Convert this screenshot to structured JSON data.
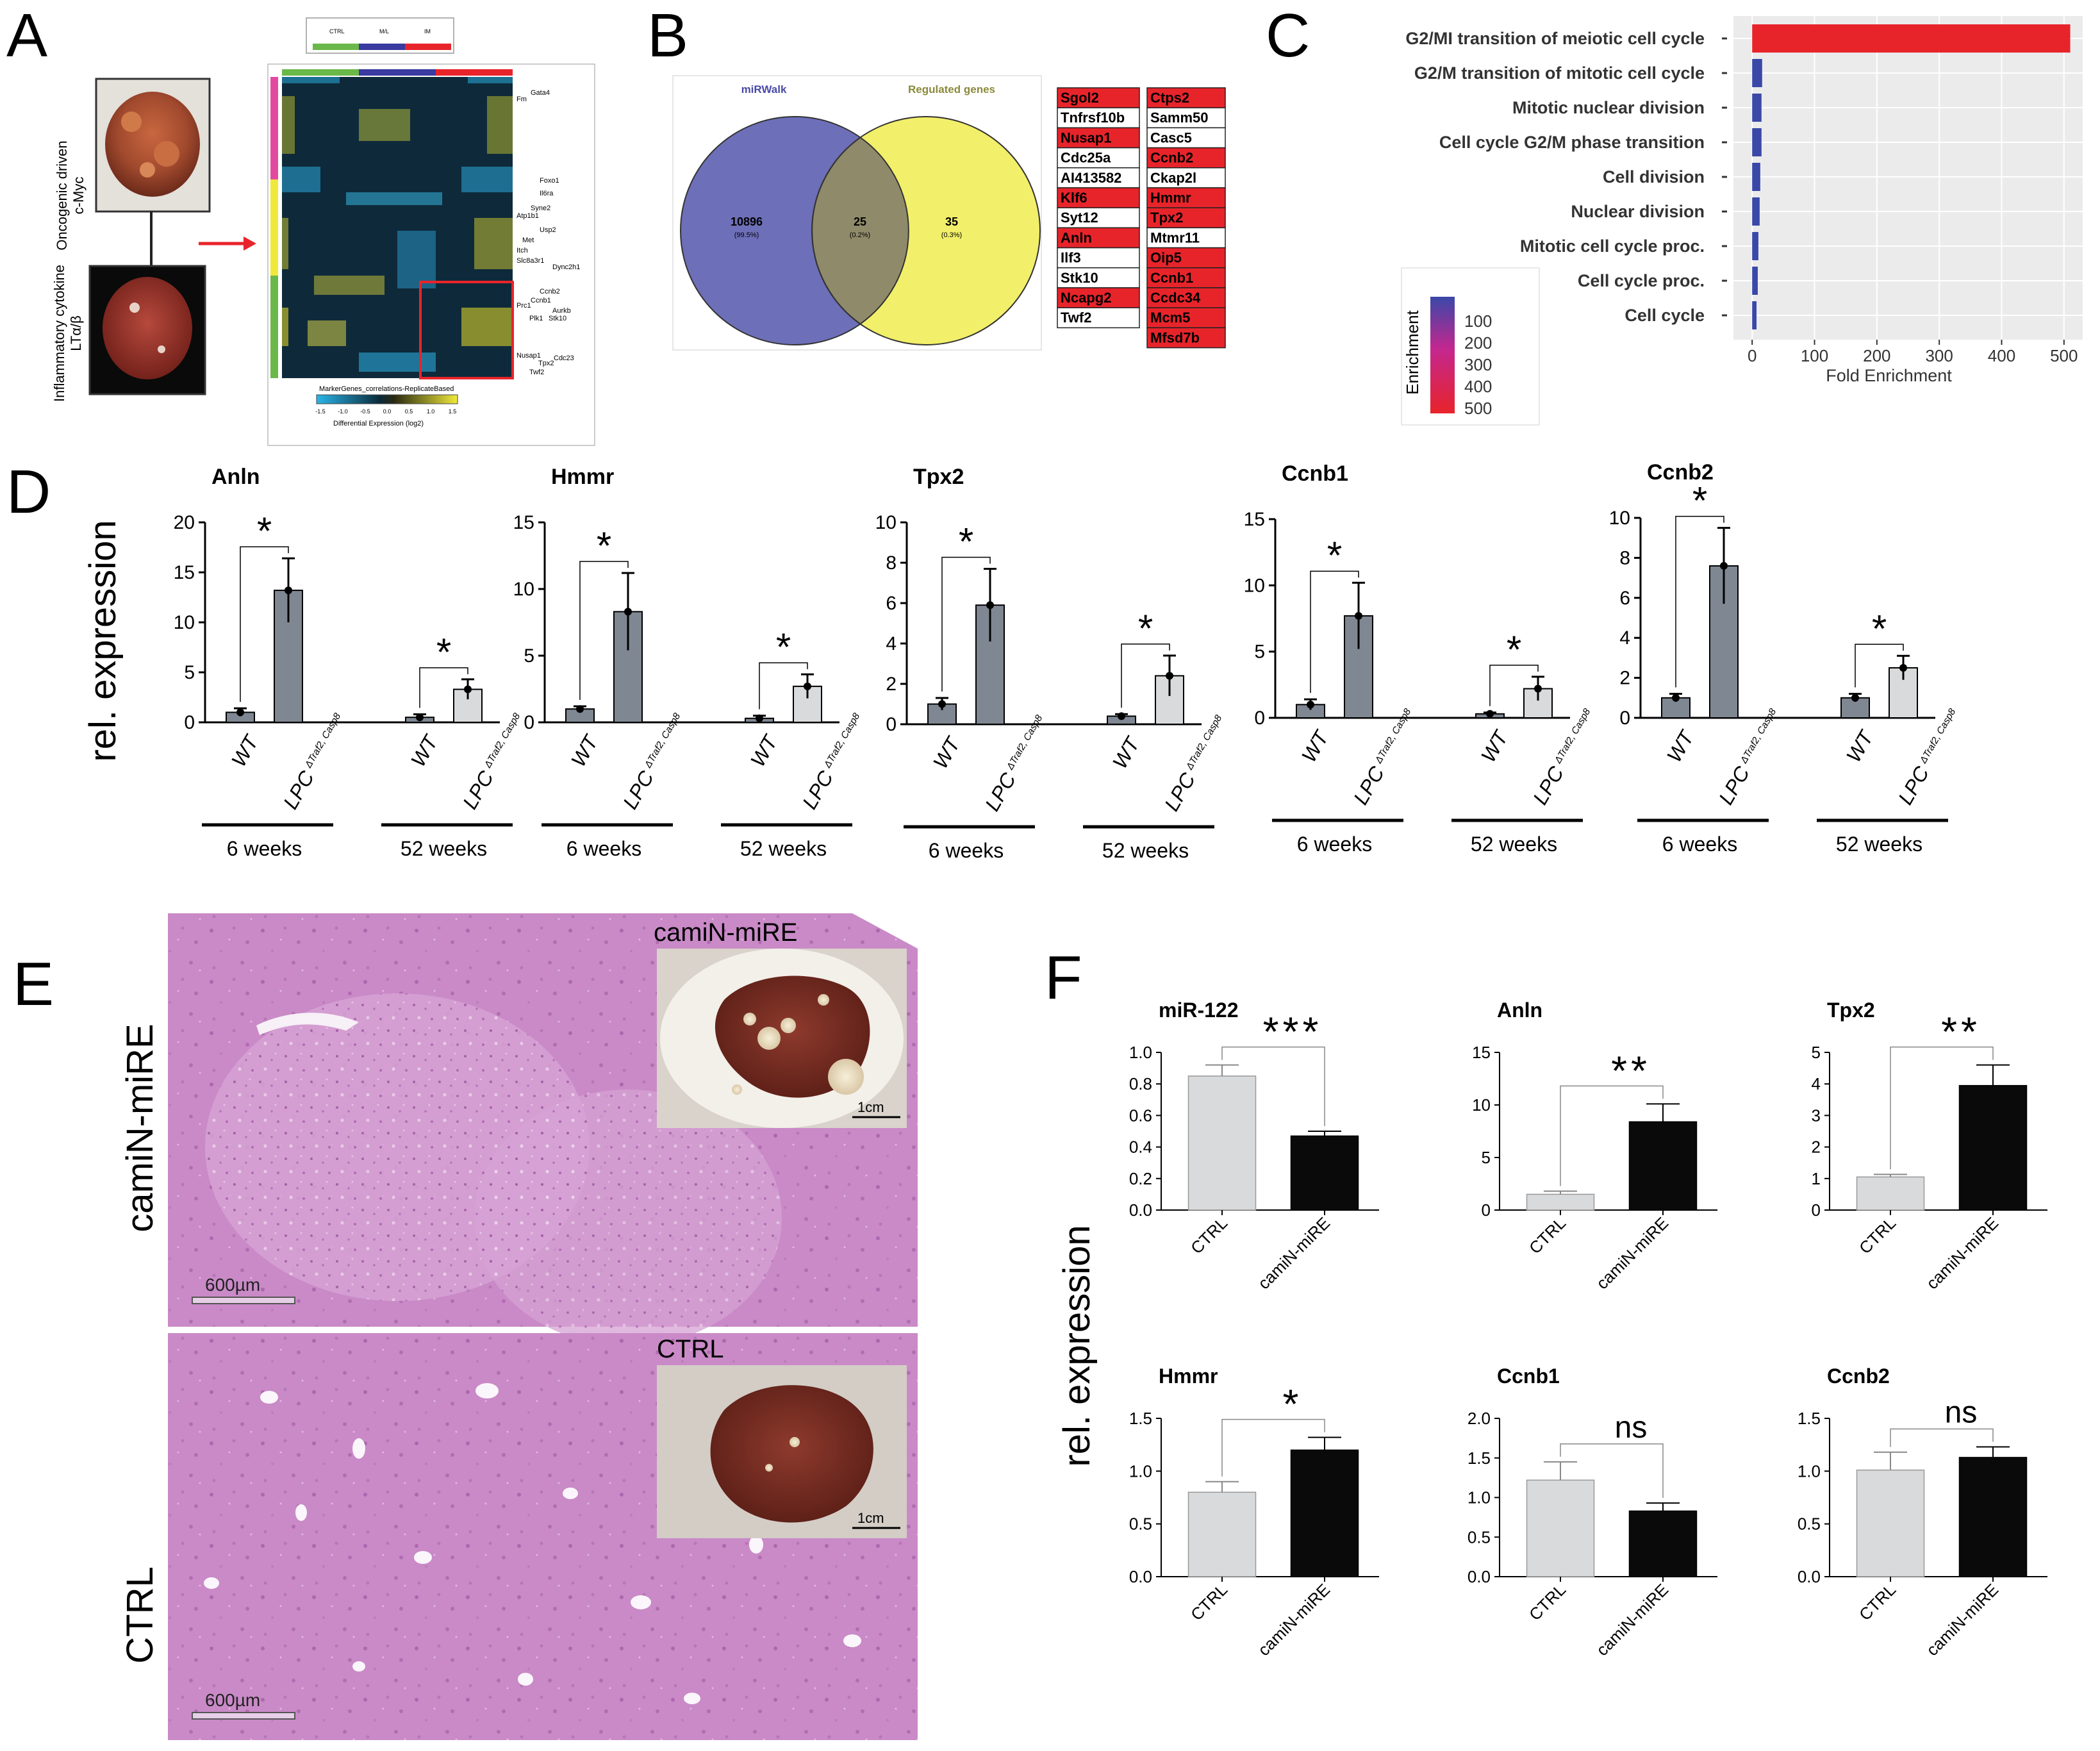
{
  "colors": {
    "venn_left": "#6d6fb8",
    "venn_right": "#f2ef6a",
    "venn_overlap": "#8f8a6a",
    "gene_highlight": "#e8242b",
    "bar_dark": "#7f8792",
    "bar_light": "#d8dadc",
    "bar_black": "#0a0a0a",
    "enrich_red": "#e8242b",
    "enrich_blue": "#3a48a8",
    "he_pink": "#c98ac7",
    "liver": "#8a2e22"
  },
  "panels": {
    "A": {
      "letter": "A",
      "photo_labels": [
        "Oncogenic driven",
        "c-Myc",
        "Inflammatory cytokine",
        "LTα/β"
      ],
      "group_labels": [
        "CTRL",
        "M/L",
        "IM"
      ],
      "heatmap_genes": [
        "Gata4",
        "Fm",
        "Foxo1",
        "Il6ra",
        "Atp1b1",
        "Syne2",
        "Usp2",
        "Met",
        "Itch",
        "Slc8a3r1",
        "Dync2h1",
        "Ccnb2",
        "Ccnb1",
        "Prc1",
        "Aurkb",
        "Plk1",
        "Nusap1",
        "Tpx2",
        "Twf2",
        "Stk10",
        "Cdc23"
      ],
      "legend_title": "MarkerGenes_correlations-ReplicateBased",
      "legend_ticks": [
        "-1.5",
        "-1.0",
        "-0.5",
        "0.0",
        "0.5",
        "1.0",
        "1.5"
      ],
      "legend_caption": "Differential Expression (log2)"
    },
    "B": {
      "letter": "B",
      "left_title": "miRWalk",
      "right_title": "Regulated genes",
      "left_count": "10896",
      "left_pct": "(99.5%)",
      "overlap_count": "25",
      "overlap_pct": "(0.2%)",
      "right_count": "35",
      "right_pct": "(0.3%)",
      "genes_col1": [
        {
          "name": "Sgol2",
          "hl": true
        },
        {
          "name": "Tnfrsf10b",
          "hl": false
        },
        {
          "name": "Nusap1",
          "hl": true
        },
        {
          "name": "Cdc25a",
          "hl": false
        },
        {
          "name": "AI413582",
          "hl": false
        },
        {
          "name": "Klf6",
          "hl": true
        },
        {
          "name": "Syt12",
          "hl": false
        },
        {
          "name": "Anln",
          "hl": true
        },
        {
          "name": "Ilf3",
          "hl": false
        },
        {
          "name": "Stk10",
          "hl": false
        },
        {
          "name": "Ncapg2",
          "hl": true
        },
        {
          "name": "Twf2",
          "hl": false
        }
      ],
      "genes_col2": [
        {
          "name": "Ctps2",
          "hl": true
        },
        {
          "name": "Samm50",
          "hl": false
        },
        {
          "name": "Casc5",
          "hl": false
        },
        {
          "name": "Ccnb2",
          "hl": true
        },
        {
          "name": "Ckap2l",
          "hl": false
        },
        {
          "name": "Hmmr",
          "hl": true
        },
        {
          "name": "Tpx2",
          "hl": true
        },
        {
          "name": "Mtmr11",
          "hl": false
        },
        {
          "name": "Oip5",
          "hl": true
        },
        {
          "name": "Ccnb1",
          "hl": true
        },
        {
          "name": "Ccdc34",
          "hl": true
        },
        {
          "name": "Mcm5",
          "hl": true
        },
        {
          "name": "Mfsd7b",
          "hl": true
        }
      ]
    },
    "C": {
      "letter": "C",
      "legend_title": "Enrichment",
      "legend_ticks": [
        "100",
        "200",
        "300",
        "400",
        "500"
      ]
    },
    "D": {
      "letter": "D",
      "ylabel": "rel. expression",
      "xcats": [
        "WT",
        "LPC"
      ],
      "xcat_sup": "ΔTraf2, Casp8",
      "groups": [
        "6 weeks",
        "52 weeks"
      ],
      "sig": "*"
    },
    "E": {
      "letter": "E",
      "top_label": "camiN-miRE",
      "bottom_label": "CTRL",
      "inset_top": "camiN-miRE",
      "inset_bottom": "CTRL",
      "scale_inset": "1cm",
      "scale_he": "600µm"
    },
    "F": {
      "letter": "F",
      "ylabel": "rel. expression",
      "xcats": [
        "CTRL",
        "camiN-miRE"
      ]
    }
  },
  "chart_data": [
    {
      "id": "C",
      "type": "bar",
      "orientation": "horizontal",
      "categories": [
        "G2/MI transition of meiotic cell cycle",
        "G2/M transition of mitotic cell cycle",
        "Mitotic nuclear division",
        "Cell cycle G2/M phase transition",
        "Cell division",
        "Nuclear division",
        "Mitotic cell cycle proc.",
        "Cell cycle proc.",
        "Cell cycle"
      ],
      "values": [
        510,
        16,
        15,
        15,
        13,
        12,
        10,
        9,
        7
      ],
      "xlabel": "Fold Enrichment",
      "xlim": [
        -30,
        530
      ],
      "xticks": [
        0,
        100,
        200,
        300,
        400,
        500
      ],
      "grid": true
    },
    {
      "id": "D-Anln",
      "type": "bar",
      "title": "Anln",
      "categories": [
        "6 weeks WT",
        "6 weeks LPC",
        "52 weeks WT",
        "52 weeks LPC"
      ],
      "values": [
        1.0,
        13.2,
        0.5,
        3.3
      ],
      "errors": [
        0.4,
        3.2,
        0.3,
        1.0
      ],
      "ylim": [
        0,
        20
      ],
      "yticks": [
        0,
        5,
        10,
        15,
        20
      ]
    },
    {
      "id": "D-Hmmr",
      "type": "bar",
      "title": "Hmmr",
      "categories": [
        "6 weeks WT",
        "6 weeks LPC",
        "52 weeks WT",
        "52 weeks LPC"
      ],
      "values": [
        1.0,
        8.3,
        0.3,
        2.7
      ],
      "errors": [
        0.2,
        2.9,
        0.2,
        0.9
      ],
      "ylim": [
        0,
        15
      ],
      "yticks": [
        0,
        5,
        10,
        15
      ]
    },
    {
      "id": "D-Tpx2",
      "type": "bar",
      "title": "Tpx2",
      "categories": [
        "6 weeks WT",
        "6 weeks LPC",
        "52 weeks WT",
        "52 weeks LPC"
      ],
      "values": [
        1.0,
        5.9,
        0.4,
        2.4
      ],
      "errors": [
        0.3,
        1.8,
        0.1,
        1.0
      ],
      "ylim": [
        0,
        10
      ],
      "yticks": [
        0,
        2,
        4,
        6,
        8,
        10
      ]
    },
    {
      "id": "D-Ccnb1",
      "type": "bar",
      "title": "Ccnb1",
      "categories": [
        "6 weeks WT",
        "6 weeks LPC",
        "52 weeks WT",
        "52 weeks LPC"
      ],
      "values": [
        1.0,
        7.7,
        0.3,
        2.2
      ],
      "errors": [
        0.4,
        2.5,
        0.1,
        0.9
      ],
      "ylim": [
        0,
        15
      ],
      "yticks": [
        0,
        5,
        10,
        15
      ]
    },
    {
      "id": "D-Ccnb2",
      "type": "bar",
      "title": "Ccnb2",
      "categories": [
        "6 weeks WT",
        "6 weeks LPC",
        "52 weeks WT",
        "52 weeks LPC"
      ],
      "values": [
        1.0,
        7.6,
        1.0,
        2.5
      ],
      "errors": [
        0.2,
        1.9,
        0.2,
        0.6
      ],
      "ylim": [
        0,
        10
      ],
      "yticks": [
        0,
        2,
        4,
        6,
        8,
        10
      ]
    },
    {
      "id": "F-miR-122",
      "type": "bar",
      "title": "miR-122",
      "sig": "***",
      "categories": [
        "CTRL",
        "camiN-miRE"
      ],
      "values": [
        0.85,
        0.47
      ],
      "errors": [
        0.07,
        0.03
      ],
      "ylim": [
        0,
        1.0
      ],
      "yticks": [
        "0.0",
        "0.2",
        "0.4",
        "0.6",
        "0.8",
        "1.0"
      ]
    },
    {
      "id": "F-Anln",
      "type": "bar",
      "title": "Anln",
      "sig": "**",
      "categories": [
        "CTRL",
        "camiN-miRE"
      ],
      "values": [
        1.5,
        8.4
      ],
      "errors": [
        0.3,
        1.7
      ],
      "ylim": [
        0,
        15
      ],
      "yticks": [
        "0",
        "5",
        "10",
        "15"
      ]
    },
    {
      "id": "F-Tpx2",
      "type": "bar",
      "title": "Tpx2",
      "sig": "**",
      "categories": [
        "CTRL",
        "camiN-miRE"
      ],
      "values": [
        1.05,
        3.95
      ],
      "errors": [
        0.08,
        0.65
      ],
      "ylim": [
        0,
        5
      ],
      "yticks": [
        "0",
        "1",
        "2",
        "3",
        "4",
        "5"
      ]
    },
    {
      "id": "F-Hmmr",
      "type": "bar",
      "title": "Hmmr",
      "sig": "*",
      "categories": [
        "CTRL",
        "camiN-miRE"
      ],
      "values": [
        0.8,
        1.2
      ],
      "errors": [
        0.1,
        0.12
      ],
      "ylim": [
        0,
        1.5
      ],
      "yticks": [
        "0.0",
        "0.5",
        "1.0",
        "1.5"
      ]
    },
    {
      "id": "F-Ccnb1",
      "type": "bar",
      "title": "Ccnb1",
      "sig": "ns",
      "categories": [
        "CTRL",
        "camiN-miRE"
      ],
      "values": [
        1.22,
        0.83
      ],
      "errors": [
        0.23,
        0.1
      ],
      "ylim": [
        0,
        2.0
      ],
      "yticks": [
        "0.0",
        "0.5",
        "1.0",
        "1.5",
        "2.0"
      ]
    },
    {
      "id": "F-Ccnb2",
      "type": "bar",
      "title": "Ccnb2",
      "sig": "ns",
      "categories": [
        "CTRL",
        "camiN-miRE"
      ],
      "values": [
        1.01,
        1.13
      ],
      "errors": [
        0.17,
        0.1
      ],
      "ylim": [
        0,
        1.5
      ],
      "yticks": [
        "0.0",
        "0.5",
        "1.0",
        "1.5"
      ]
    }
  ]
}
